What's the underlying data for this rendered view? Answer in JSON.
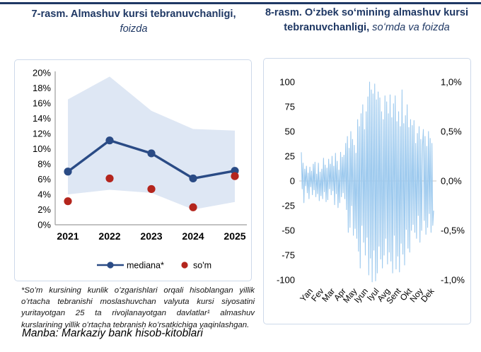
{
  "titles": {
    "left_bold": "7-rasm. Almashuv kursi tebranuvchanligi,",
    "left_italic": "foizda",
    "right_bold": "8-rasm. Oʻzbek soʻmining almashuv kursi tebranuvchanligi,",
    "right_italic": " soʻmda va foizda"
  },
  "footnote": "*Soʻm kursining kunlik oʻzgarishlari orqali hisoblangan yillik oʻrtacha tebranishi moslashuvchan valyuta kursi siyosatini yuritayotgan 25 ta rivojlanayotgan davlatlar¹ almashuv kurslarining yillik oʻrtacha tebranish koʻrsatkichiga yaqinlashgan.",
  "source": "Manba: Markaziy bank hisob-kitoblari",
  "colors": {
    "title_navy": "#1F3864",
    "median_line": "#2A4B85",
    "som_dot": "#B4251D",
    "band_fill": "#DEE7F4",
    "daily_line": "#9CC9EE",
    "axis_gray": "#9D9D9D",
    "zero_line": "#C9C9C9",
    "panel_border": "#CDD9EA"
  },
  "chart_data": [
    {
      "type": "line",
      "title": "7-rasm. Almashuv kursi tebranuvchanligi, foizda",
      "categories": [
        "2021",
        "2022",
        "2023",
        "2024",
        "2025"
      ],
      "series": [
        {
          "name": "mediana*",
          "kind": "line-marker",
          "color": "#2A4B85",
          "values": [
            7.0,
            11.1,
            9.4,
            6.1,
            7.1
          ]
        },
        {
          "name": "so'm",
          "kind": "scatter",
          "color": "#B4251D",
          "values": [
            3.1,
            6.1,
            4.7,
            2.3,
            6.4
          ]
        }
      ],
      "band": {
        "upper": [
          16.5,
          19.5,
          15.0,
          12.6,
          12.4
        ],
        "lower": [
          4.0,
          4.6,
          4.2,
          2.0,
          3.0
        ],
        "color": "#DEE7F4"
      },
      "ylim": [
        0,
        20
      ],
      "ytick_step": 2,
      "yticks": [
        "0%",
        "2%",
        "4%",
        "6%",
        "8%",
        "10%",
        "12%",
        "14%",
        "16%",
        "18%",
        "20%"
      ],
      "grid": false,
      "legend_position": "bottom"
    },
    {
      "type": "line",
      "title": "8-rasm. Oʻzbek soʻmining almashuv kursi tebranuvchanligi, soʻmda va foizda",
      "months": [
        "Yan",
        "Fev",
        "Mar",
        "Apr",
        "May",
        "Iyun",
        "Iyul",
        "Avg",
        "Sent",
        "Okt",
        "Noy",
        "Dek"
      ],
      "left_axis_ticks": [
        100,
        75,
        50,
        25,
        0,
        -25,
        -50,
        -75,
        -100
      ],
      "right_axis_ticks": [
        "1,0%",
        "0,5%",
        "0,0%",
        "-0,5%",
        "-1,0%"
      ],
      "right_axis_tick_values": [
        100,
        50,
        0,
        -50,
        -100
      ],
      "ylim": [
        -100,
        100
      ],
      "line_color": "#9CC9EE",
      "grid": false,
      "values": [
        29,
        -8,
        18,
        -22,
        12,
        -5,
        15,
        -12,
        8,
        -18,
        14,
        -6,
        10,
        -14,
        17,
        -9,
        19,
        -16,
        7,
        -13,
        18,
        -20,
        9,
        -15,
        12,
        -18,
        23,
        -11,
        16,
        -21,
        13,
        -19,
        22,
        -8,
        17,
        -14,
        25,
        -10,
        15,
        -24,
        28,
        -13,
        20,
        -27,
        11,
        -22,
        29,
        -16,
        24,
        -12,
        26,
        -18,
        38,
        -29,
        45,
        -52,
        33,
        -47,
        50,
        -25,
        42,
        -55,
        36,
        -48,
        28,
        -58,
        62,
        -71,
        55,
        -88,
        68,
        -45,
        77,
        -62,
        52,
        -75,
        70,
        -57,
        85,
        -95,
        100,
        -78,
        92,
        -102,
        88,
        -70,
        98,
        -101,
        82,
        -93,
        90,
        -66,
        84,
        -79,
        70,
        -88,
        62,
        -75,
        86,
        -58,
        80,
        -84,
        68,
        -72,
        87,
        -81,
        64,
        -93,
        78,
        -55,
        86,
        -89,
        60,
        -76,
        70,
        -92,
        55,
        -63,
        92,
        -74,
        58,
        -85,
        66,
        -49,
        77,
        -68,
        54,
        -72,
        62,
        -50,
        56,
        -44,
        61,
        -52,
        38,
        -58,
        48,
        -35,
        55,
        -62,
        42,
        -50,
        36,
        52,
        -40,
        45,
        -54,
        35,
        -47,
        50,
        -33,
        43,
        -52,
        38,
        -45,
        -30
      ]
    }
  ]
}
